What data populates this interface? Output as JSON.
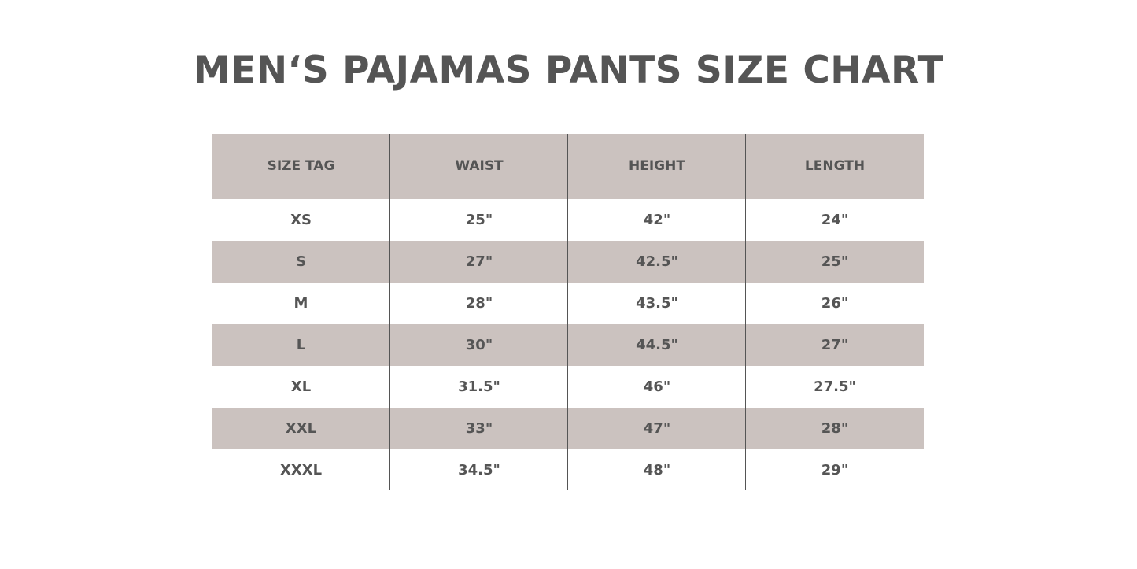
{
  "title": "MEN‘S PAJAMAS PANTS SIZE CHART",
  "colors": {
    "band": "#cbc2bf",
    "text": "#555555",
    "background": "#ffffff"
  },
  "table": {
    "headers": [
      "SIZE TAG",
      "WAIST",
      "HEIGHT",
      "LENGTH"
    ],
    "rows": [
      [
        "XS",
        "25\"",
        "42\"",
        "24\""
      ],
      [
        "S",
        "27\"",
        "42.5\"",
        "25\""
      ],
      [
        "M",
        "28\"",
        "43.5\"",
        "26\""
      ],
      [
        "L",
        "30\"",
        "44.5\"",
        "27\""
      ],
      [
        "XL",
        "31.5\"",
        "46\"",
        "27.5\""
      ],
      [
        "XXL",
        "33\"",
        "47\"",
        "28\""
      ],
      [
        "XXXL",
        "34.5\"",
        "48\"",
        "29\""
      ]
    ]
  }
}
